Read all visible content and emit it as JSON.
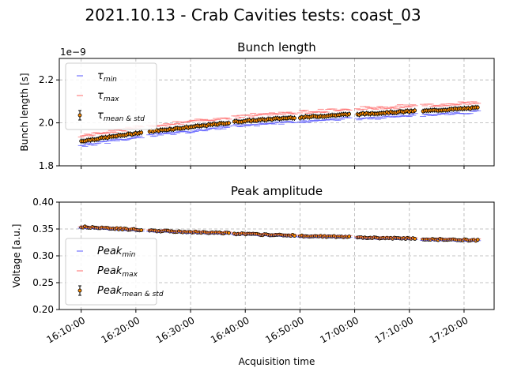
{
  "figure": {
    "suptitle": "2021.10.13 - Crab Cavities tests: coast_03"
  },
  "shared_x": {
    "xlabel": "Acquisition time",
    "ticks": [
      "16:10:00",
      "16:20:00",
      "16:30:00",
      "16:40:00",
      "16:50:00",
      "17:00:00",
      "17:10:00",
      "17:20:00"
    ],
    "xlim": [
      "16:06:00",
      "17:25:30"
    ]
  },
  "colors": {
    "min": "#5a5aff",
    "max": "#ff6b6b",
    "mean_face": "#ff8c00",
    "err": "#000000",
    "grid": "#b0b0b0"
  },
  "chart_data": [
    {
      "type": "scatter",
      "title": "Bunch length",
      "ylabel": "Bunch length [s]",
      "offset_label": "1e−9",
      "ylim": [
        1.8,
        2.3
      ],
      "yticks": [
        "1.8",
        "2.0",
        "2.2"
      ],
      "grid": true,
      "legend_position": "top-left",
      "legend": [
        {
          "sym": "τ",
          "sub": "min"
        },
        {
          "sym": "τ",
          "sub": "max"
        },
        {
          "sym": "τ",
          "sub": "mean & std"
        }
      ],
      "segments": [
        {
          "start": "16:10:00",
          "end": "16:21:00",
          "mean": [
            1.915,
            1.955
          ],
          "min_off": 0.02,
          "max_off": 0.025,
          "std": 0.012
        },
        {
          "start": "16:22:30",
          "end": "16:37:00",
          "mean": [
            1.96,
            2.0
          ],
          "min_off": 0.02,
          "max_off": 0.025,
          "std": 0.012
        },
        {
          "start": "16:38:00",
          "end": "16:49:00",
          "mean": [
            2.005,
            2.025
          ],
          "min_off": 0.02,
          "max_off": 0.025,
          "std": 0.012
        },
        {
          "start": "16:50:00",
          "end": "16:59:00",
          "mean": [
            2.025,
            2.04
          ],
          "min_off": 0.02,
          "max_off": 0.025,
          "std": 0.012
        },
        {
          "start": "17:00:30",
          "end": "17:11:00",
          "mean": [
            2.04,
            2.055
          ],
          "min_off": 0.02,
          "max_off": 0.025,
          "std": 0.012
        },
        {
          "start": "17:12:30",
          "end": "17:22:30",
          "mean": [
            2.055,
            2.07
          ],
          "min_off": 0.02,
          "max_off": 0.025,
          "std": 0.012
        }
      ]
    },
    {
      "type": "scatter",
      "title": "Peak amplitude",
      "ylabel": "Voltage [a.u.]",
      "offset_label": "",
      "ylim": [
        0.2,
        0.4
      ],
      "yticks": [
        "0.20",
        "0.25",
        "0.30",
        "0.35",
        "0.40"
      ],
      "grid": true,
      "legend_position": "bottom-left",
      "legend": [
        {
          "sym": "Peak",
          "sub": "min"
        },
        {
          "sym": "Peak",
          "sub": "max"
        },
        {
          "sym": "Peak",
          "sub": "mean & std"
        }
      ],
      "segments": [
        {
          "start": "16:10:00",
          "end": "16:21:00",
          "mean": [
            0.354,
            0.348
          ],
          "min_off": 0.0015,
          "max_off": 0.0015,
          "std": 0.001
        },
        {
          "start": "16:22:30",
          "end": "16:37:00",
          "mean": [
            0.347,
            0.342
          ],
          "min_off": 0.0015,
          "max_off": 0.0015,
          "std": 0.001
        },
        {
          "start": "16:38:00",
          "end": "16:49:00",
          "mean": [
            0.341,
            0.338
          ],
          "min_off": 0.0015,
          "max_off": 0.0015,
          "std": 0.001
        },
        {
          "start": "16:50:00",
          "end": "16:59:00",
          "mean": [
            0.337,
            0.335
          ],
          "min_off": 0.0015,
          "max_off": 0.0015,
          "std": 0.001
        },
        {
          "start": "17:00:30",
          "end": "17:11:00",
          "mean": [
            0.334,
            0.332
          ],
          "min_off": 0.0015,
          "max_off": 0.0015,
          "std": 0.001
        },
        {
          "start": "17:12:30",
          "end": "17:22:30",
          "mean": [
            0.331,
            0.329
          ],
          "min_off": 0.0015,
          "max_off": 0.0015,
          "std": 0.001
        }
      ]
    }
  ]
}
